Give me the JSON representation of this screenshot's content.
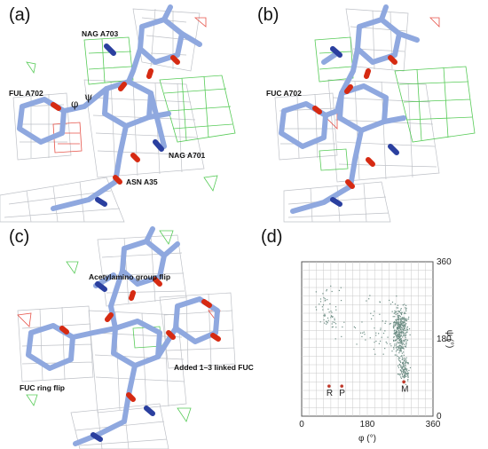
{
  "panels": {
    "a": {
      "label": "(a)",
      "annotations": {
        "nag_a703": "NAG A703",
        "ful_a702": "FUL A702",
        "nag_a701": "NAG A701",
        "asn_a35": "ASN A35",
        "phi": "φ",
        "psi": "ψ"
      }
    },
    "b": {
      "label": "(b)",
      "annotations": {
        "fuc_a702": "FUC A702"
      }
    },
    "c": {
      "label": "(c)",
      "annotations": {
        "acetylamino": "Acetylamino group flip",
        "added_fuc": "Added 1–3 linked FUC",
        "fuc_ring_flip": "FUC ring flip"
      }
    },
    "d": {
      "label": "(d)",
      "plot": {
        "type": "scatter",
        "x_label": "φ (°)",
        "y_label": "ψ (°)",
        "x_ticks": [
          "0",
          "180",
          "360"
        ],
        "y_ticks": [
          "0",
          "180",
          "360"
        ],
        "xlim": [
          0,
          360
        ],
        "ylim": [
          0,
          360
        ],
        "grid": true,
        "marked_points": [
          {
            "label": "R",
            "phi": 75,
            "psi": 70
          },
          {
            "label": "P",
            "phi": 110,
            "psi": 70
          },
          {
            "label": "M",
            "phi": 280,
            "psi": 80
          }
        ]
      }
    }
  },
  "colors": {
    "carbon": "#8fa8df",
    "oxygen": "#d62a12",
    "nitrogen": "#2a3f9f",
    "mesh": "#8a8f9a",
    "positive_density": "#39c23a",
    "negative_density": "#e2362a",
    "scatter": "#6f8f86",
    "marker": "#c0392b"
  }
}
